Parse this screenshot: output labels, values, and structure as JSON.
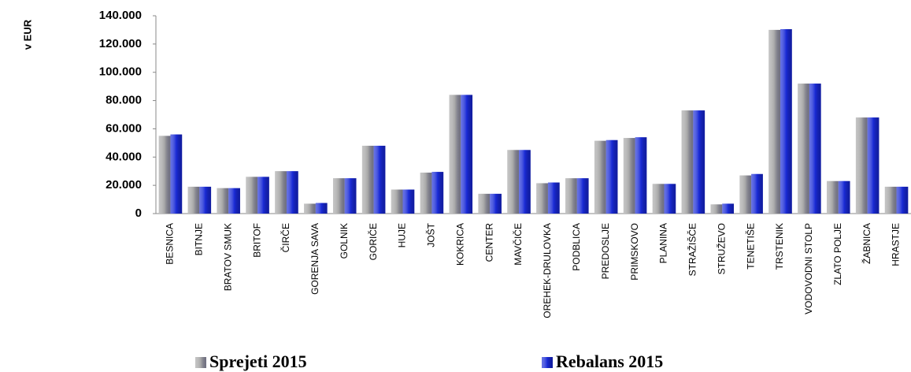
{
  "chart_data": {
    "type": "bar",
    "y_label": "v EUR",
    "categories": [
      "BESNICA",
      "BITNJE",
      "BRATOV SMUK",
      "BRITOF",
      "ČIRČE",
      "GORENJA SAVA",
      "GOLNIK",
      "GORIČE",
      "HUJE",
      "JOŠT",
      "KOKRICA",
      "CENTER",
      "MAVČIČE",
      "OREHEK-DRULOVKA",
      "PODBLICA",
      "PREDOSLJE",
      "PRIMSKOVO",
      "PLANINA",
      "STRAŽIŠČE",
      "STRUŽEVO",
      "TENETIŠE",
      "TRSTENIK",
      "VODOVODNI STOLP",
      "ZLATO POLJE",
      "ŽABNICA",
      "HRASTJE"
    ],
    "series": [
      {
        "name": "Sprejeti 2015",
        "color": "#a6a6a6",
        "values": [
          55000,
          19000,
          18000,
          26000,
          30000,
          7000,
          25000,
          48000,
          17000,
          29000,
          84000,
          14000,
          45000,
          21500,
          25000,
          51500,
          53500,
          21000,
          73000,
          6500,
          27000,
          130000,
          92000,
          23000,
          68000,
          19000
        ]
      },
      {
        "name": "Rebalans 2015",
        "color": "#1a2bd6",
        "values": [
          56000,
          19000,
          18000,
          26000,
          30000,
          7500,
          25000,
          48000,
          17000,
          29500,
          84000,
          14000,
          45000,
          22000,
          25000,
          52000,
          54000,
          21000,
          73000,
          7000,
          28000,
          130500,
          92000,
          23000,
          68000,
          19000
        ]
      }
    ],
    "ylim": [
      0,
      140000
    ],
    "yticks": [
      0,
      {
        "value": 20000,
        "label": "20.000"
      },
      {
        "value": 40000,
        "label": "40.000"
      },
      {
        "value": 60000,
        "label": "60.000"
      },
      {
        "value": 80000,
        "label": "80.000"
      },
      {
        "value": 100000,
        "label": "100.000"
      },
      {
        "value": 120000,
        "label": "120.000"
      },
      {
        "value": 140000,
        "label": "140.000"
      }
    ],
    "grid": false,
    "legend": "bottom"
  }
}
